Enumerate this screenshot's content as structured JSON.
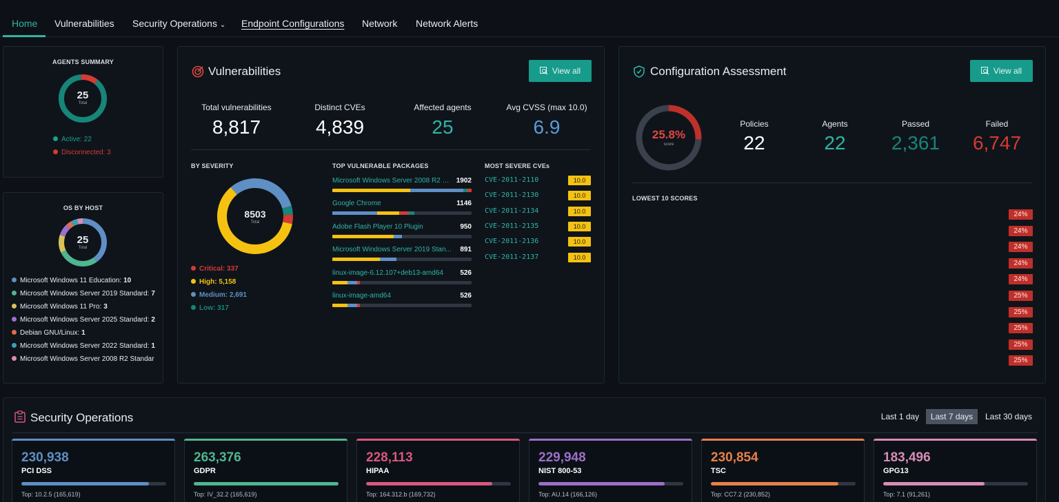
{
  "nav": {
    "tabs": [
      {
        "label": "Home",
        "active": true
      },
      {
        "label": "Vulnerabilities"
      },
      {
        "label": "Security Operations",
        "icon": "chevron-down-icon"
      },
      {
        "label": "Endpoint Configurations"
      },
      {
        "label": "Network"
      },
      {
        "label": "Network Alerts"
      }
    ]
  },
  "agents_summary": {
    "title": "AGENTS SUMMARY",
    "total": "25",
    "total_label": "Total",
    "active": "Active: 22",
    "disconnected": "Disconnected: 3",
    "active_count": 22,
    "disconnected_count": 3,
    "colors": {
      "active": "#17857a",
      "disconnected": "#d33b33"
    }
  },
  "os_by_host": {
    "title": "OS BY HOST",
    "total": "25",
    "total_label": "Total",
    "items": [
      {
        "name": "Microsoft Windows 11 Education:",
        "count": "10",
        "value": 10,
        "color": "#5f8fc4"
      },
      {
        "name": "Microsoft Windows Server 2019 Standard:",
        "count": "7",
        "value": 7,
        "color": "#4fb68f"
      },
      {
        "name": "Microsoft Windows 11 Pro:",
        "count": "3",
        "value": 3,
        "color": "#d7c25a"
      },
      {
        "name": "Microsoft Windows Server 2025 Standard:",
        "count": "2",
        "value": 2,
        "color": "#9d6fc8"
      },
      {
        "name": "Debian GNU/Linux:",
        "count": "1",
        "value": 1,
        "color": "#e06c4c"
      },
      {
        "name": "Microsoft Windows Server 2022 Standard:",
        "count": "1",
        "value": 1,
        "color": "#3aa0b8"
      },
      {
        "name": "Microsoft Windows Server 2008 R2 Standar",
        "count": "",
        "value": 1,
        "color": "#d88cb4"
      }
    ]
  },
  "vulnerabilities": {
    "title": "Vulnerabilities",
    "view_all": "View all",
    "stats": [
      {
        "label": "Total vulnerabilities",
        "value": "8,817",
        "color": "#ffffff"
      },
      {
        "label": "Distinct CVEs",
        "value": "4,839",
        "color": "#ffffff"
      },
      {
        "label": "Affected agents",
        "value": "25",
        "color": "#2fb5a5"
      },
      {
        "label": "Avg CVSS (max 10.0)",
        "value": "6.9",
        "color": "#5b9bd5"
      }
    ],
    "by_severity": {
      "title": "BY SEVERITY",
      "total": "8503",
      "total_label": "Total",
      "items": [
        {
          "label": "Critical: 337",
          "value": 337,
          "color": "#d33b33"
        },
        {
          "label": "High: 5,158",
          "value": 5158,
          "color": "#f5c211"
        },
        {
          "label": "Medium: 2,691",
          "value": 2691,
          "color": "#5f8fc4"
        },
        {
          "label": "Low: 317",
          "value": 317,
          "color": "#17857a"
        }
      ]
    },
    "packages": {
      "title": "TOP VULNERABLE PACKAGES",
      "items": [
        {
          "name": "Microsoft Windows Server 2008 R2 St...",
          "count": "1902",
          "parts": [
            {
              "v": 0.56,
              "c": "#f5c211"
            },
            {
              "v": 0.38,
              "c": "#5f8fc4"
            },
            {
              "v": 0.03,
              "c": "#17857a"
            },
            {
              "v": 0.03,
              "c": "#d33b33"
            }
          ]
        },
        {
          "name": "Google Chrome",
          "count": "1146",
          "parts": [
            {
              "v": 0.32,
              "c": "#5f8fc4"
            },
            {
              "v": 0.16,
              "c": "#f5c211"
            },
            {
              "v": 0.07,
              "c": "#d33b33"
            },
            {
              "v": 0.04,
              "c": "#17857a"
            }
          ]
        },
        {
          "name": "Adobe Flash Player 10 Plugin",
          "count": "950",
          "parts": [
            {
              "v": 0.44,
              "c": "#f5c211"
            },
            {
              "v": 0.06,
              "c": "#5f8fc4"
            }
          ]
        },
        {
          "name": "Microsoft Windows Server 2019 Stan...",
          "count": "891",
          "parts": [
            {
              "v": 0.34,
              "c": "#f5c211"
            },
            {
              "v": 0.12,
              "c": "#5f8fc4"
            }
          ]
        },
        {
          "name": "linux-image-6.12.107+deb13-amd64",
          "count": "526",
          "parts": [
            {
              "v": 0.11,
              "c": "#f5c211"
            },
            {
              "v": 0.07,
              "c": "#5f8fc4"
            },
            {
              "v": 0.02,
              "c": "#d33b33"
            }
          ]
        },
        {
          "name": "linux-image-amd64",
          "count": "526",
          "parts": [
            {
              "v": 0.11,
              "c": "#f5c211"
            },
            {
              "v": 0.07,
              "c": "#5f8fc4"
            },
            {
              "v": 0.02,
              "c": "#d33b33"
            }
          ]
        }
      ]
    },
    "cves": {
      "title": "MOST SEVERE CVEs",
      "items": [
        {
          "id": "CVE-2011-2110",
          "score": "10.0"
        },
        {
          "id": "CVE-2011-2130",
          "score": "10.0"
        },
        {
          "id": "CVE-2011-2134",
          "score": "10.0"
        },
        {
          "id": "CVE-2011-2135",
          "score": "10.0"
        },
        {
          "id": "CVE-2011-2136",
          "score": "10.0"
        },
        {
          "id": "CVE-2011-2137",
          "score": "10.0"
        }
      ]
    }
  },
  "config": {
    "title": "Configuration Assessment",
    "view_all": "View all",
    "score": "25.8%",
    "score_value": 25.8,
    "score_label": "score",
    "stats": [
      {
        "label": "Policies",
        "value": "22",
        "color": "#ffffff"
      },
      {
        "label": "Agents",
        "value": "22",
        "color": "#2fb5a5"
      },
      {
        "label": "Passed",
        "value": "2,361",
        "color": "#17857a"
      },
      {
        "label": "Failed",
        "value": "6,747",
        "color": "#d33b33"
      }
    ],
    "lowest_title": "LOWEST 10 SCORES",
    "lowest": [
      "24%",
      "24%",
      "24%",
      "24%",
      "24%",
      "25%",
      "25%",
      "25%",
      "25%",
      "25%"
    ]
  },
  "security_ops": {
    "title": "Security Operations",
    "ranges": [
      {
        "label": "Last 1 day"
      },
      {
        "label": "Last 7 days",
        "selected": true
      },
      {
        "label": "Last 30 days"
      }
    ],
    "cards": [
      {
        "value": "230,938",
        "name": "PCI DSS",
        "top": "Top: 10.2.5 (165,619)",
        "fill": 0.88,
        "color": "#5f8fc4"
      },
      {
        "value": "263,376",
        "name": "GDPR",
        "top": "Top: IV_32.2 (165,619)",
        "fill": 1.0,
        "color": "#4fb68f"
      },
      {
        "value": "228,113",
        "name": "HIPAA",
        "top": "Top: 164.312.b (169,732)",
        "fill": 0.87,
        "color": "#d9577d"
      },
      {
        "value": "229,948",
        "name": "NIST 800-53",
        "top": "Top: AU.14 (166,126)",
        "fill": 0.87,
        "color": "#9d6fc8"
      },
      {
        "value": "230,854",
        "name": "TSC",
        "top": "Top: CC7.2 (230,852)",
        "fill": 0.88,
        "color": "#e8804a"
      },
      {
        "value": "183,496",
        "name": "GPG13",
        "top": "Top: 7.1 (91,261)",
        "fill": 0.7,
        "color": "#d88cb4"
      }
    ]
  }
}
